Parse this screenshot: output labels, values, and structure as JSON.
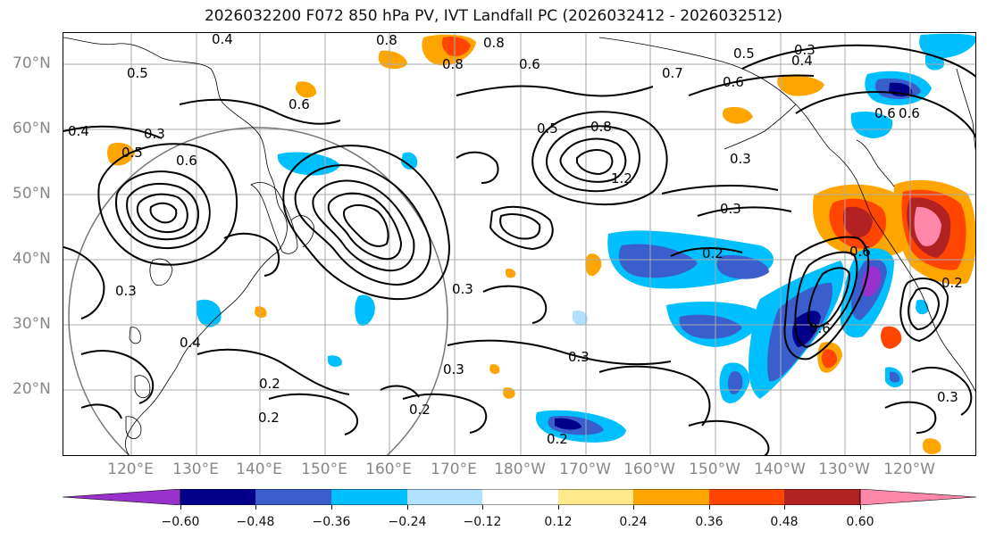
{
  "title": "2026032200 F072 850 hPa PV, IVT Landfall PC (2026032412 - 2026032512)",
  "lat_labels": [
    "70°N",
    "60°N",
    "50°N",
    "40°N",
    "30°N",
    "20°N"
  ],
  "lon_labels": [
    "120°E",
    "130°E",
    "140°E",
    "150°E",
    "160°E",
    "170°E",
    "180°W",
    "170°W",
    "160°W",
    "150°W",
    "140°W",
    "130°W",
    "120°W"
  ],
  "colorbar": {
    "ticks": [
      "−0.60",
      "−0.48",
      "−0.36",
      "−0.24",
      "−0.12",
      "0.12",
      "0.24",
      "0.36",
      "0.48",
      "0.60"
    ],
    "colors": [
      "#9932CC",
      "#00008B",
      "#3A5FCD",
      "#00BFFF",
      "#B0E2FF",
      "#FFFFFF",
      "#FFE98A",
      "#FFA500",
      "#FF4500",
      "#B22222",
      "#FF88AA"
    ]
  },
  "contour_labels": [
    "0.4",
    "0.8",
    "0.8",
    "0.8",
    "0.5",
    "0.3",
    "0.4",
    "0.6",
    "0.7",
    "0.6",
    "0.5",
    "0.3",
    "0.4",
    "0.5",
    "0.6",
    "0.6",
    "0.6",
    "0.8",
    "1.2",
    "0.5",
    "0.6",
    "0.6",
    "0.3",
    "0.3",
    "0.2",
    "0.6",
    "0.3",
    "0.3",
    "0.2",
    "0.2",
    "0.2",
    "0.4",
    "0.3",
    "0.3",
    "0.2",
    "0.3",
    "0.2"
  ]
}
